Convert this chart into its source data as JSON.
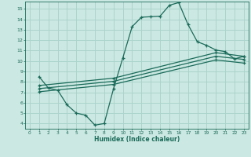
{
  "xlabel": "Humidex (Indice chaleur)",
  "bg_color": "#cce8e2",
  "grid_color": "#aad4cc",
  "line_color": "#1a6b5a",
  "xlim": [
    -0.5,
    23.5
  ],
  "ylim": [
    3.5,
    15.7
  ],
  "xticks": [
    0,
    1,
    2,
    3,
    4,
    5,
    6,
    7,
    8,
    9,
    10,
    11,
    12,
    13,
    14,
    15,
    16,
    17,
    18,
    19,
    20,
    21,
    22,
    23
  ],
  "yticks": [
    4,
    5,
    6,
    7,
    8,
    9,
    10,
    11,
    12,
    13,
    14,
    15
  ],
  "curve1_x": [
    1,
    2,
    3,
    4,
    5,
    6,
    7,
    8,
    9,
    10,
    11,
    12,
    13,
    14,
    15,
    16,
    17,
    18,
    19,
    20,
    21,
    22,
    23
  ],
  "curve1_y": [
    8.5,
    7.4,
    7.2,
    5.8,
    5.0,
    4.8,
    3.85,
    4.0,
    7.35,
    10.3,
    13.3,
    14.2,
    14.25,
    14.3,
    15.35,
    15.6,
    13.5,
    11.85,
    11.5,
    11.05,
    10.9,
    10.2,
    10.45
  ],
  "line2_x": [
    1,
    9,
    20,
    23
  ],
  "line2_y": [
    7.65,
    8.35,
    10.8,
    10.45
  ],
  "line3_x": [
    1,
    9,
    20,
    23
  ],
  "line3_y": [
    7.35,
    8.05,
    10.45,
    10.15
  ],
  "line4_x": [
    1,
    9,
    20,
    23
  ],
  "line4_y": [
    7.05,
    7.75,
    10.1,
    9.8
  ],
  "marker_size": 3.5
}
